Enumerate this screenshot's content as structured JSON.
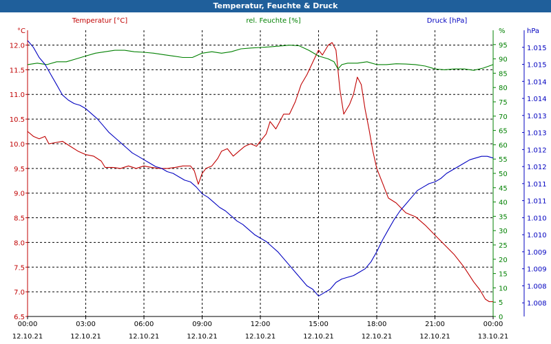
{
  "window": {
    "title": "Temperatur, Feuchte & Druck"
  },
  "colors": {
    "temperature": "#c00000",
    "humidity": "#008000",
    "pressure": "#0000c0",
    "titlebar": "#1f5f9b",
    "grid": "#000000"
  },
  "chart_data": {
    "type": "line",
    "title": "Temperatur, Feuchte & Druck",
    "legend": [
      "Temperatur [°C]",
      "rel. Feuchte [%]",
      "Druck [hPa]"
    ],
    "axes": {
      "left": {
        "unit": "°C",
        "ylim": [
          6.5,
          12.3
        ],
        "ticks": [
          "12.0",
          "11.5",
          "11.0",
          "10.5",
          "10.0",
          "9.5",
          "9.0",
          "8.5",
          "8.0",
          "7.5",
          "7.0",
          "6.5"
        ],
        "tick_values": [
          12.0,
          11.5,
          11.0,
          10.5,
          10.0,
          9.5,
          9.0,
          8.5,
          8.0,
          7.5,
          7.0,
          6.5
        ]
      },
      "mid": {
        "unit": "%",
        "ylim": [
          0,
          100
        ],
        "ticks": [
          "95",
          "90",
          "85",
          "80",
          "75",
          "70",
          "65",
          "60",
          "55",
          "50",
          "45",
          "40",
          "35",
          "30",
          "25",
          "20",
          "15",
          "10",
          "5",
          "0"
        ],
        "tick_values": [
          95,
          90,
          85,
          80,
          75,
          70,
          65,
          60,
          55,
          50,
          45,
          40,
          35,
          30,
          25,
          20,
          15,
          10,
          5,
          0
        ]
      },
      "right": {
        "unit": "hPa",
        "ylim": [
          1007.5,
          1015.9
        ],
        "ticks": [
          "1.015",
          "1.015",
          "1.014",
          "1.014",
          "1.013",
          "1.013",
          "1.012",
          "1.012",
          "1.011",
          "1.011",
          "1.010",
          "1.010",
          "1.009",
          "1.009",
          "1.008",
          "1.008"
        ],
        "tick_values": [
          1015.4,
          1014.9,
          1014.4,
          1013.9,
          1013.4,
          1012.9,
          1012.4,
          1011.9,
          1011.4,
          1010.9,
          1010.4,
          1009.9,
          1009.4,
          1008.9,
          1008.4,
          1007.9
        ]
      },
      "x": {
        "xlim": [
          0,
          24
        ],
        "ticks": [
          {
            "value": 0,
            "time": "00:00",
            "date": "12.10.21"
          },
          {
            "value": 3,
            "time": "03:00",
            "date": "12.10.21"
          },
          {
            "value": 6,
            "time": "06:00",
            "date": "12.10.21"
          },
          {
            "value": 9,
            "time": "09:00",
            "date": "12.10.21"
          },
          {
            "value": 12,
            "time": "12:00",
            "date": "12.10.21"
          },
          {
            "value": 15,
            "time": "15:00",
            "date": "12.10.21"
          },
          {
            "value": 18,
            "time": "18:00",
            "date": "12.10.21"
          },
          {
            "value": 21,
            "time": "21:00",
            "date": "12.10.21"
          },
          {
            "value": 24,
            "time": "00:00",
            "date": "13.10.21"
          }
        ]
      }
    },
    "series": [
      {
        "name": "Temperatur [°C]",
        "axis": "left",
        "color": "#c00000",
        "x": [
          0,
          0.3,
          0.6,
          0.9,
          1.1,
          1.4,
          1.8,
          2.2,
          2.6,
          3.0,
          3.4,
          3.8,
          4.0,
          4.4,
          4.8,
          5.2,
          5.6,
          6.0,
          6.4,
          6.8,
          7.2,
          7.6,
          8.0,
          8.4,
          8.6,
          8.8,
          9.0,
          9.2,
          9.5,
          9.8,
          10.0,
          10.3,
          10.6,
          10.9,
          11.2,
          11.5,
          11.8,
          12.0,
          12.3,
          12.5,
          12.8,
          13.0,
          13.2,
          13.5,
          13.8,
          14.1,
          14.4,
          14.7,
          15.0,
          15.2,
          15.5,
          15.7,
          15.9,
          16.1,
          16.3,
          16.6,
          16.8,
          17.0,
          17.2,
          17.4,
          17.6,
          17.8,
          18.0,
          18.3,
          18.6,
          19.0,
          19.5,
          20.0,
          20.5,
          21.0,
          21.5,
          22.0,
          22.5,
          23.0,
          23.3,
          23.6,
          23.8,
          24.0
        ],
        "values": [
          10.25,
          10.15,
          10.1,
          10.15,
          10.0,
          10.02,
          10.05,
          9.95,
          9.85,
          9.78,
          9.75,
          9.65,
          9.52,
          9.52,
          9.5,
          9.55,
          9.5,
          9.55,
          9.52,
          9.5,
          9.5,
          9.52,
          9.55,
          9.55,
          9.45,
          9.18,
          9.4,
          9.5,
          9.55,
          9.7,
          9.85,
          9.9,
          9.75,
          9.85,
          9.95,
          10.0,
          9.95,
          10.05,
          10.2,
          10.45,
          10.3,
          10.45,
          10.6,
          10.6,
          10.85,
          11.2,
          11.4,
          11.65,
          11.9,
          11.8,
          12.0,
          12.05,
          11.9,
          11.1,
          10.6,
          10.8,
          11.0,
          11.35,
          11.2,
          10.7,
          10.3,
          9.85,
          9.5,
          9.2,
          8.9,
          8.8,
          8.6,
          8.52,
          8.35,
          8.15,
          7.95,
          7.75,
          7.5,
          7.2,
          7.05,
          6.85,
          6.8,
          6.8
        ]
      },
      {
        "name": "rel. Feuchte [%]",
        "axis": "mid",
        "color": "#008000",
        "x": [
          0,
          0.5,
          1.0,
          1.5,
          2.0,
          2.5,
          3.0,
          3.5,
          4.0,
          4.5,
          5.0,
          5.5,
          6.0,
          6.5,
          7.0,
          7.5,
          8.0,
          8.5,
          9.0,
          9.5,
          10.0,
          10.5,
          11.0,
          11.5,
          12.0,
          12.5,
          13.0,
          13.5,
          14.0,
          14.5,
          15.0,
          15.5,
          15.8,
          16.0,
          16.2,
          16.5,
          17.0,
          17.5,
          18.0,
          18.5,
          19.0,
          19.5,
          20.0,
          20.5,
          21.0,
          21.5,
          22.0,
          22.5,
          23.0,
          23.5,
          24.0
        ],
        "values": [
          88,
          88.5,
          88,
          89,
          89,
          90,
          91,
          92,
          92.5,
          93,
          93,
          92.5,
          92.3,
          92,
          91.5,
          91,
          90.5,
          90.5,
          92,
          92.5,
          92,
          92.5,
          93.5,
          93.8,
          94,
          94.2,
          94.5,
          94.8,
          94.6,
          93,
          91,
          90,
          89,
          86.5,
          88,
          88.5,
          88.5,
          89,
          88,
          88,
          88.3,
          88.2,
          88,
          87.5,
          86.5,
          86.2,
          86.5,
          86.5,
          86,
          86.8,
          88
        ]
      },
      {
        "name": "Druck [hPa]",
        "axis": "right",
        "color": "#0000c0",
        "x": [
          0,
          0.3,
          0.6,
          0.9,
          1.2,
          1.5,
          1.8,
          2.1,
          2.4,
          2.7,
          3.0,
          3.3,
          3.6,
          3.9,
          4.2,
          4.5,
          4.8,
          5.1,
          5.4,
          5.7,
          6.0,
          6.3,
          6.6,
          6.9,
          7.2,
          7.5,
          7.8,
          8.1,
          8.4,
          8.7,
          9.0,
          9.3,
          9.6,
          9.9,
          10.2,
          10.5,
          10.8,
          11.1,
          11.4,
          11.7,
          12.0,
          12.3,
          12.6,
          12.9,
          13.2,
          13.5,
          13.8,
          14.1,
          14.4,
          14.7,
          15.0,
          15.3,
          15.6,
          15.9,
          16.2,
          16.5,
          16.8,
          17.1,
          17.4,
          17.7,
          18.0,
          18.3,
          18.6,
          18.9,
          19.2,
          19.5,
          19.8,
          20.1,
          20.4,
          20.7,
          21.0,
          21.3,
          21.6,
          21.9,
          22.2,
          22.5,
          22.8,
          23.1,
          23.4,
          23.7,
          24.0
        ],
        "values": [
          1015.6,
          1015.4,
          1015.1,
          1014.9,
          1014.6,
          1014.3,
          1014.0,
          1013.85,
          1013.75,
          1013.7,
          1013.6,
          1013.45,
          1013.3,
          1013.1,
          1012.9,
          1012.75,
          1012.6,
          1012.45,
          1012.3,
          1012.2,
          1012.1,
          1012.0,
          1011.9,
          1011.85,
          1011.75,
          1011.7,
          1011.6,
          1011.5,
          1011.45,
          1011.3,
          1011.1,
          1011.0,
          1010.85,
          1010.7,
          1010.6,
          1010.45,
          1010.3,
          1010.2,
          1010.05,
          1009.9,
          1009.8,
          1009.7,
          1009.55,
          1009.4,
          1009.2,
          1009.0,
          1008.8,
          1008.6,
          1008.4,
          1008.3,
          1008.1,
          1008.2,
          1008.3,
          1008.5,
          1008.6,
          1008.65,
          1008.7,
          1008.8,
          1008.9,
          1009.1,
          1009.4,
          1009.75,
          1010.05,
          1010.35,
          1010.6,
          1010.8,
          1011.0,
          1011.2,
          1011.3,
          1011.4,
          1011.45,
          1011.55,
          1011.7,
          1011.8,
          1011.9,
          1012.0,
          1012.1,
          1012.15,
          1012.2,
          1012.2,
          1012.15
        ]
      }
    ]
  }
}
